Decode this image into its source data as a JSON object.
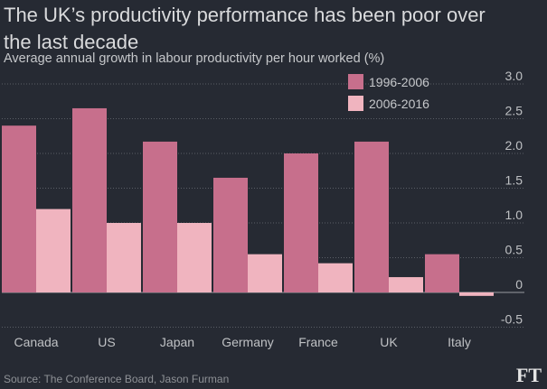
{
  "title": "The UK’s productivity performance has been poor over the last decade",
  "subtitle": "Average annual growth in labour productivity per hour worked (%)",
  "source": "Source: The Conference Board, Jason Furman",
  "logo": "FT",
  "colors": {
    "background": "#262a33",
    "series1": "#c76f8c",
    "series2": "#f0b4bf",
    "gridline": "#5a5e66",
    "zeroline": "#9a9ca0"
  },
  "chart_data": {
    "type": "bar",
    "title": "The UK’s productivity performance has been poor over the last decade",
    "subtitle": "Average annual growth in labour productivity per hour worked (%)",
    "categories": [
      "Canada",
      "US",
      "Japan",
      "Germany",
      "France",
      "UK",
      "Italy"
    ],
    "series": [
      {
        "name": "1996-2006",
        "values": [
          2.4,
          2.65,
          2.17,
          1.65,
          2.0,
          2.17,
          0.55
        ]
      },
      {
        "name": "2006-2016",
        "values": [
          1.2,
          1.0,
          1.0,
          0.55,
          0.42,
          0.22,
          -0.05
        ]
      }
    ],
    "ylim": [
      -0.5,
      3.0
    ],
    "yticks": [
      "3.0",
      "2.5",
      "2.0",
      "1.5",
      "1.0",
      "0.5",
      "0",
      "-0.5"
    ],
    "ytick_values": [
      3.0,
      2.5,
      2.0,
      1.5,
      1.0,
      0.5,
      0,
      -0.5
    ],
    "grid": "horizontal dotted",
    "legend": "top-right",
    "ylabel": "",
    "xlabel": ""
  }
}
